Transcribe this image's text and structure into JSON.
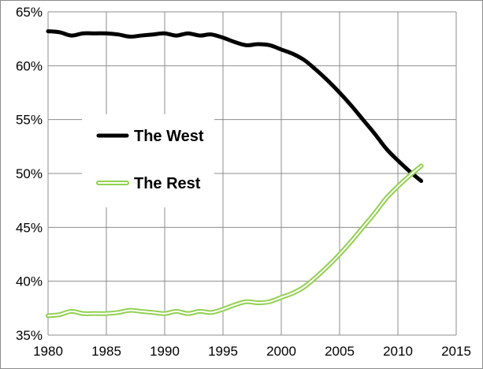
{
  "chart_data": {
    "type": "line",
    "title": "",
    "xlabel": "",
    "ylabel": "",
    "xlim": [
      1980,
      2015
    ],
    "ylim": [
      35,
      65
    ],
    "grid": true,
    "legend_position": "left-middle",
    "x_ticks": [
      1980,
      1985,
      1990,
      1995,
      2000,
      2005,
      2010,
      2015
    ],
    "y_ticks": [
      35,
      40,
      45,
      50,
      55,
      60,
      65
    ],
    "x_tick_labels": [
      "1980",
      "1985",
      "1990",
      "1995",
      "2000",
      "2005",
      "2010",
      "2015"
    ],
    "y_tick_labels": [
      "35%",
      "40%",
      "45%",
      "50%",
      "55%",
      "60%",
      "65%"
    ],
    "series": [
      {
        "name": "The West",
        "color": "#000000",
        "style": "solid",
        "x": [
          1980,
          1981,
          1982,
          1983,
          1984,
          1985,
          1986,
          1987,
          1988,
          1989,
          1990,
          1991,
          1992,
          1993,
          1994,
          1995,
          1996,
          1997,
          1998,
          1999,
          2000,
          2001,
          2002,
          2003,
          2004,
          2005,
          2006,
          2007,
          2008,
          2009,
          2010,
          2011,
          2012
        ],
        "values": [
          63.2,
          63.1,
          62.8,
          63.0,
          63.0,
          63.0,
          62.9,
          62.7,
          62.8,
          62.9,
          63.0,
          62.8,
          63.0,
          62.8,
          62.9,
          62.6,
          62.2,
          61.9,
          62.0,
          61.9,
          61.5,
          61.1,
          60.5,
          59.6,
          58.6,
          57.5,
          56.3,
          55.0,
          53.7,
          52.3,
          51.2,
          50.2,
          49.3
        ]
      },
      {
        "name": "The Rest",
        "color": "#92d050",
        "style": "double",
        "x": [
          1980,
          1981,
          1982,
          1983,
          1984,
          1985,
          1986,
          1987,
          1988,
          1989,
          1990,
          1991,
          1992,
          1993,
          1994,
          1995,
          1996,
          1997,
          1998,
          1999,
          2000,
          2001,
          2002,
          2003,
          2004,
          2005,
          2006,
          2007,
          2008,
          2009,
          2010,
          2011,
          2012
        ],
        "values": [
          36.8,
          36.9,
          37.2,
          37.0,
          37.0,
          37.0,
          37.1,
          37.3,
          37.2,
          37.1,
          37.0,
          37.2,
          37.0,
          37.2,
          37.1,
          37.4,
          37.8,
          38.1,
          38.0,
          38.1,
          38.5,
          38.9,
          39.5,
          40.4,
          41.4,
          42.5,
          43.7,
          45.0,
          46.3,
          47.7,
          48.8,
          49.8,
          50.7
        ]
      }
    ]
  }
}
